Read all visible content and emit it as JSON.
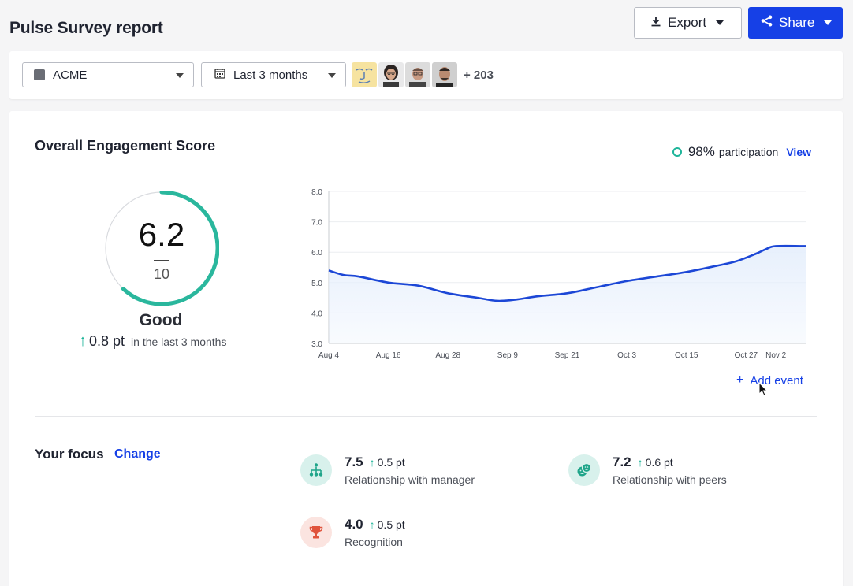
{
  "header": {
    "title": "Pulse Survey report",
    "export_label": "Export",
    "share_label": "Share"
  },
  "filters": {
    "organization": "ACME",
    "range": "Last 3 months",
    "avatar_count": "+ 203"
  },
  "engagement": {
    "title": "Overall Engagement Score",
    "participation_value": "98%",
    "participation_label": "participation",
    "view_label": "View",
    "score": "6.2",
    "max": "10",
    "score_fraction": 0.62,
    "rating": "Good",
    "delta_value": "0.8 pt",
    "delta_desc": "in the last 3 months",
    "add_event_label": "Add event"
  },
  "chart_data": {
    "type": "area",
    "title": "",
    "xlabel": "",
    "ylabel": "",
    "ylim": [
      3.0,
      8.0
    ],
    "yticks": [
      "8.0",
      "7.0",
      "6.0",
      "5.0",
      "4.0",
      "3.0"
    ],
    "ytick_values": [
      8,
      7,
      6,
      5,
      4,
      3
    ],
    "xticks": [
      "Aug 4",
      "Aug 16",
      "Aug 28",
      "Sep 9",
      "Sep 21",
      "Oct 3",
      "Oct 15",
      "Oct 27",
      "Nov 2"
    ],
    "xtick_positions": [
      0,
      12,
      24,
      36,
      48,
      60,
      72,
      84,
      90
    ],
    "grid": true,
    "series": [
      {
        "x": [
          0,
          3,
          6,
          12,
          18,
          24,
          30,
          34,
          38,
          42,
          48,
          54,
          60,
          66,
          72,
          78,
          82,
          86,
          88,
          90,
          96
        ],
        "values": [
          5.4,
          5.25,
          5.2,
          5.0,
          4.9,
          4.65,
          4.5,
          4.4,
          4.45,
          4.55,
          4.65,
          4.85,
          5.05,
          5.2,
          5.35,
          5.55,
          5.7,
          5.95,
          6.1,
          6.2,
          6.2
        ]
      }
    ],
    "x_domain": [
      0,
      96
    ],
    "line_color": "#1c47d6",
    "fill_color": "#e6effc"
  },
  "focus": {
    "title": "Your focus",
    "change_label": "Change",
    "items": [
      {
        "score": "7.5",
        "delta": "0.5 pt",
        "label": "Relationship with manager",
        "icon": "org-chart-icon"
      },
      {
        "score": "7.2",
        "delta": "0.6 pt",
        "label": "Relationship with peers",
        "icon": "peers-icon"
      },
      {
        "score": "4.0",
        "delta": "0.5 pt",
        "label": "Recognition",
        "icon": "trophy-icon"
      }
    ]
  },
  "colors": {
    "accent": "#1640e6",
    "positive": "#1fb59a",
    "gauge_track": "#d9dbdf"
  }
}
